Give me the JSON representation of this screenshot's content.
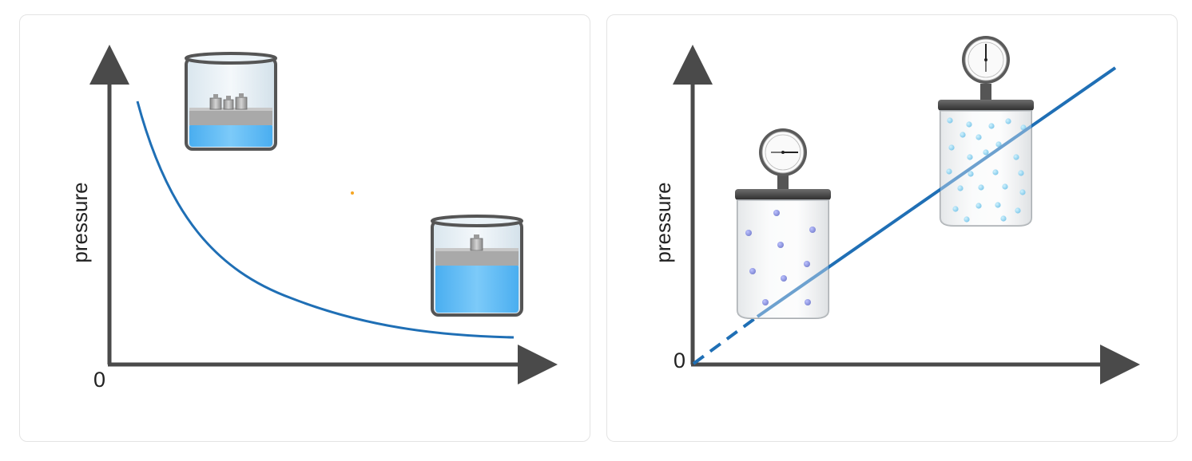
{
  "panels": [
    {
      "id": "left",
      "y_label": "pressure",
      "origin_label": "0",
      "curve_color": "#1f6fb5",
      "curve_type": "inverse-proportional",
      "illustrations": [
        "beaker-with-three-weights-icon",
        "beaker-with-one-weight-icon"
      ]
    },
    {
      "id": "right",
      "y_label": "pressure",
      "origin_label": "0",
      "line_color": "#1f6fb5",
      "line_type": "proportional-with-dashed-extrapolation",
      "illustrations": [
        "gas-jar-sparse-particles-icon",
        "gas-jar-dense-particles-icon"
      ]
    }
  ],
  "colors": {
    "axis": "#4a4a4a",
    "water": "#5fb8f5",
    "sparse_particle": "#4a55c8",
    "dense_particle": "#4fb9e6",
    "accent_dot": "#f5a623"
  }
}
